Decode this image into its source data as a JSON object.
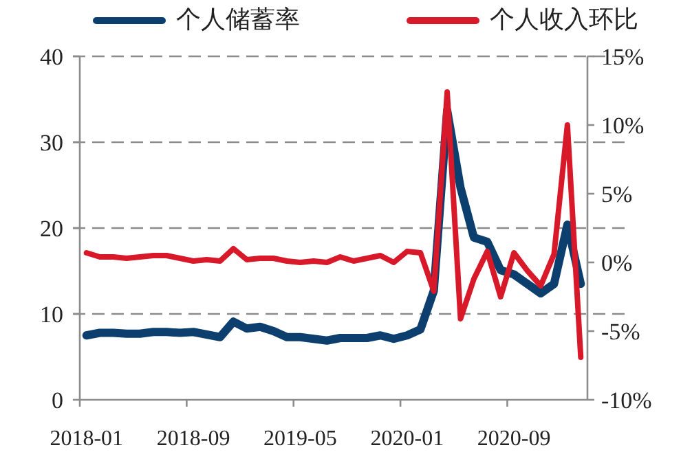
{
  "chart_data": {
    "type": "line",
    "categories": [
      "2018-01",
      null,
      null,
      null,
      null,
      null,
      null,
      null,
      "2018-09",
      null,
      null,
      null,
      null,
      null,
      null,
      null,
      "2019-05",
      null,
      null,
      null,
      null,
      null,
      null,
      null,
      "2020-01",
      null,
      null,
      null,
      null,
      null,
      null,
      null,
      "2020-09",
      null,
      null,
      null,
      null,
      null
    ],
    "series": [
      {
        "name": "个人储蓄率",
        "color": "#0d3f6e",
        "values": [
          7.5,
          7.8,
          7.8,
          7.7,
          7.7,
          7.9,
          7.9,
          7.8,
          7.9,
          7.6,
          7.3,
          9.1,
          8.3,
          8.5,
          8.0,
          7.3,
          7.3,
          7.1,
          6.9,
          7.2,
          7.2,
          7.2,
          7.5,
          7.1,
          7.5,
          8.2,
          12.7,
          33.7,
          24.7,
          18.9,
          18.4,
          15.1,
          14.6,
          13.5,
          12.4,
          13.5,
          20.4,
          13.5
        ]
      },
      {
        "name": "个人收入环比",
        "color": "#d7192a",
        "axis": "y2",
        "values": [
          0.7,
          0.4,
          0.4,
          0.3,
          0.4,
          0.5,
          0.5,
          0.3,
          0.1,
          0.2,
          0.1,
          1.0,
          0.2,
          0.3,
          0.3,
          0.1,
          0.0,
          0.1,
          0.0,
          0.4,
          0.1,
          0.3,
          0.5,
          0.0,
          0.8,
          0.7,
          -2.1,
          12.4,
          -4.1,
          -1.2,
          0.8,
          -2.5,
          0.7,
          -0.6,
          -1.7,
          0.6,
          10.0,
          -6.9
        ]
      }
    ],
    "ylim": [
      0,
      40
    ],
    "yticks": [
      0,
      10,
      20,
      30,
      40
    ],
    "y2lim": [
      -10,
      15
    ],
    "y2ticks": [
      {
        "value": -10,
        "label": "-10%"
      },
      {
        "value": -5,
        "label": "-5%"
      },
      {
        "value": 0,
        "label": "0%"
      },
      {
        "value": 5,
        "label": "5%"
      },
      {
        "value": 10,
        "label": "10%"
      },
      {
        "value": 15,
        "label": "15%"
      }
    ],
    "grid": "y",
    "legend": "top"
  }
}
